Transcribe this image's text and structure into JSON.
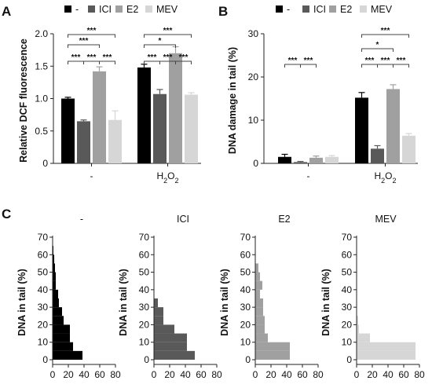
{
  "colors": {
    "none": "#000000",
    "ICI": "#595959",
    "E2": "#a0a0a0",
    "MEV": "#d6d6d6"
  },
  "panels": {
    "A": {
      "letter": "A"
    },
    "B": {
      "letter": "B"
    },
    "C": {
      "letter": "C"
    }
  },
  "chart_data": [
    {
      "panel": "A",
      "type": "bar",
      "ylabel": "Relative DCF fluorescence",
      "ylim": [
        0,
        2.0
      ],
      "yticks": [
        "0",
        "0.5",
        "1.0",
        "1.5",
        "2.0"
      ],
      "categories": [
        "-",
        "H2O2"
      ],
      "series": [
        {
          "name": "-",
          "values": [
            1.0,
            1.48
          ],
          "errors": [
            0.02,
            0.05
          ]
        },
        {
          "name": "ICI",
          "values": [
            0.65,
            1.07
          ],
          "errors": [
            0.02,
            0.07
          ]
        },
        {
          "name": "E2",
          "values": [
            1.42,
            1.7
          ],
          "errors": [
            0.07,
            0.1
          ]
        },
        {
          "name": "MEV",
          "values": [
            0.67,
            1.06
          ],
          "errors": [
            0.14,
            0.03
          ]
        }
      ],
      "significance": [
        {
          "group": 0,
          "from": 0,
          "to": 3,
          "level": 0,
          "label": "***"
        },
        {
          "group": 0,
          "from": 0,
          "to": 2,
          "level": 1,
          "label": "***"
        },
        {
          "group": 0,
          "from": 0,
          "to": 1,
          "level": 2,
          "label": "***"
        },
        {
          "group": 0,
          "from": 1,
          "to": 2,
          "level": 2,
          "label": "***"
        },
        {
          "group": 0,
          "from": 2,
          "to": 3,
          "level": 2,
          "label": "***"
        },
        {
          "group": 1,
          "from": 0,
          "to": 3,
          "level": 0,
          "label": "***"
        },
        {
          "group": 1,
          "from": 0,
          "to": 2,
          "level": 1,
          "label": "*"
        },
        {
          "group": 1,
          "from": 0,
          "to": 1,
          "level": 2,
          "label": "***"
        },
        {
          "group": 1,
          "from": 1,
          "to": 2,
          "level": 2,
          "label": "***"
        },
        {
          "group": 1,
          "from": 2,
          "to": 3,
          "level": 2,
          "label": "***"
        }
      ]
    },
    {
      "panel": "B",
      "type": "bar",
      "ylabel": "DNA damage in tail (%)",
      "ylim": [
        0,
        30
      ],
      "yticks": [
        "0",
        "10",
        "20",
        "30"
      ],
      "categories": [
        "-",
        "H2O2"
      ],
      "series": [
        {
          "name": "-",
          "values": [
            1.5,
            15.2
          ],
          "errors": [
            0.6,
            1.2
          ]
        },
        {
          "name": "ICI",
          "values": [
            0.3,
            3.4
          ],
          "errors": [
            0.15,
            0.7
          ]
        },
        {
          "name": "E2",
          "values": [
            1.3,
            17.2
          ],
          "errors": [
            0.4,
            1.0
          ]
        },
        {
          "name": "MEV",
          "values": [
            1.5,
            6.4
          ],
          "errors": [
            0.3,
            0.5
          ]
        }
      ],
      "significance": [
        {
          "group": 0,
          "from": 0,
          "to": 1,
          "level": 2,
          "label": "***"
        },
        {
          "group": 0,
          "from": 1,
          "to": 2,
          "level": 2,
          "label": "***"
        },
        {
          "group": 1,
          "from": 0,
          "to": 3,
          "level": 0,
          "label": "***"
        },
        {
          "group": 1,
          "from": 0,
          "to": 2,
          "level": 1,
          "label": "*"
        },
        {
          "group": 1,
          "from": 0,
          "to": 1,
          "level": 2,
          "label": "***"
        },
        {
          "group": 1,
          "from": 1,
          "to": 2,
          "level": 2,
          "label": "***"
        },
        {
          "group": 1,
          "from": 2,
          "to": 3,
          "level": 2,
          "label": "***"
        }
      ]
    },
    {
      "panel": "C",
      "type": "bar",
      "orientation": "horizontal-histogram",
      "xlim": [
        0,
        80
      ],
      "xticks": [
        "0",
        "20",
        "40",
        "60",
        "80"
      ],
      "ylim": [
        0,
        70
      ],
      "yticks": [
        "0",
        "10",
        "20",
        "30",
        "40",
        "50",
        "60",
        "70"
      ],
      "ylabel": "DNA in tail (%)",
      "subplots": [
        {
          "title": "-",
          "series": "-",
          "bins": [
            [
              0,
              5,
              38
            ],
            [
              5,
              10,
              26
            ],
            [
              10,
              15,
              22
            ],
            [
              15,
              20,
              22
            ],
            [
              20,
              25,
              14
            ],
            [
              25,
              30,
              12
            ],
            [
              30,
              35,
              8
            ],
            [
              35,
              40,
              7
            ],
            [
              40,
              45,
              4
            ],
            [
              45,
              50,
              4
            ],
            [
              50,
              55,
              3
            ],
            [
              55,
              60,
              2
            ],
            [
              60,
              65,
              1
            ]
          ]
        },
        {
          "title": "ICI",
          "series": "ICI",
          "bins": [
            [
              0,
              5,
              52
            ],
            [
              5,
              10,
              42
            ],
            [
              10,
              15,
              42
            ],
            [
              15,
              20,
              26
            ],
            [
              20,
              25,
              12
            ],
            [
              25,
              30,
              12
            ],
            [
              30,
              35,
              5
            ]
          ]
        },
        {
          "title": "E2",
          "series": "E2",
          "bins": [
            [
              0,
              5,
              44
            ],
            [
              5,
              10,
              44
            ],
            [
              10,
              15,
              16
            ],
            [
              15,
              20,
              12
            ],
            [
              20,
              25,
              12
            ],
            [
              25,
              30,
              10
            ],
            [
              30,
              35,
              10
            ],
            [
              35,
              40,
              6
            ],
            [
              40,
              45,
              9
            ],
            [
              45,
              50,
              6
            ],
            [
              50,
              55,
              4
            ]
          ]
        },
        {
          "title": "MEV",
          "series": "MEV",
          "bins": [
            [
              0,
              5,
              75
            ],
            [
              5,
              10,
              75
            ],
            [
              10,
              15,
              17
            ],
            [
              15,
              20,
              3
            ],
            [
              20,
              25,
              2
            ]
          ]
        }
      ]
    }
  ]
}
